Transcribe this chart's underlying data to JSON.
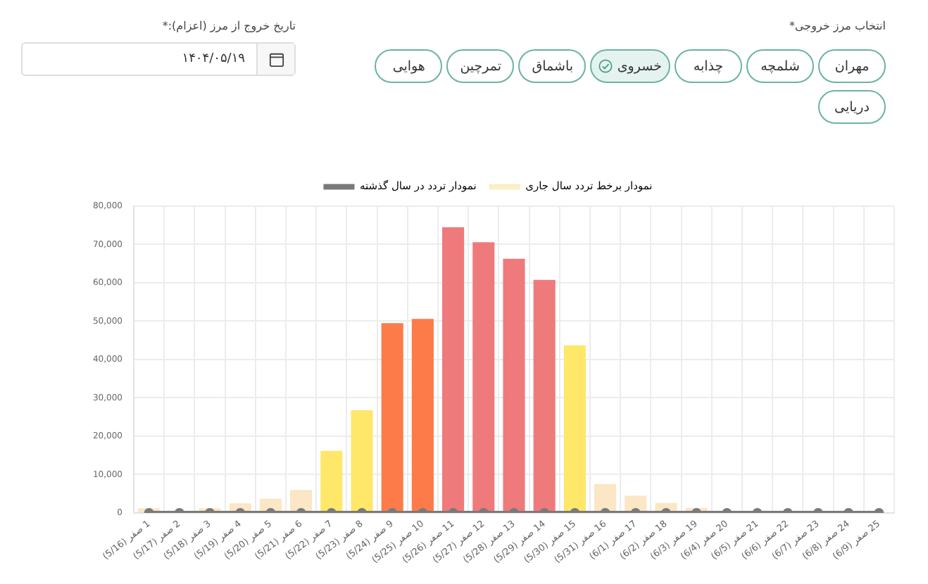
{
  "chart_data": {
    "type": "bar",
    "categories": [
      "1 صفر (5/16)",
      "2 صفر (5/17)",
      "3 صفر (5/18)",
      "4 صفر (5/19)",
      "5 صفر (5/20)",
      "6 صفر (5/21)",
      "7 صفر (5/22)",
      "8 صفر (5/23)",
      "9 صفر (5/24)",
      "10 صفر (5/25)",
      "11 صفر (5/26)",
      "12 صفر (5/27)",
      "13 صفر (5/28)",
      "14 صفر (5/29)",
      "15 صفر (5/30)",
      "16 صفر (5/31)",
      "17 صفر (6/1)",
      "18 صفر (6/2)",
      "19 صفر (6/3)",
      "20 صفر (6/4)",
      "21 صفر (6/5)",
      "22 صفر (6/6)",
      "23 صفر (6/7)",
      "24 صفر (6/8)",
      "25 صفر (6/9)"
    ],
    "series": [
      {
        "name": "نمودار تردد در سال گذشته",
        "type": "line",
        "color": "#7a7a7a",
        "values": [
          0,
          0,
          0,
          0,
          0,
          0,
          0,
          0,
          0,
          0,
          0,
          0,
          0,
          0,
          0,
          0,
          0,
          0,
          0,
          0,
          0,
          0,
          0,
          0,
          0
        ]
      },
      {
        "name": "نمودار برخط تردد سال جاری",
        "color": "#fbefc4",
        "colors": [
          "#fbe6c5",
          "#fbe6c5",
          "#fbe6c5",
          "#fbe6c5",
          "#fbe6c5",
          "#fbe6c5",
          "#ffe76a",
          "#ffe76a",
          "#fd7b49",
          "#fd7b49",
          "#ef7a7c",
          "#ef7a7c",
          "#ef7a7c",
          "#ef7a7c",
          "#ffe76a",
          "#fbe6c5",
          "#fbe6c5",
          "#fbe6c5",
          "#fbe6c5",
          "#fbe6c5",
          "#fbe6c5",
          "#fbe6c5",
          "#fbe6c5",
          "#fbe6c5",
          "#fbe6c5"
        ],
        "values": [
          1200,
          300,
          1200,
          2500,
          3700,
          6000,
          16200,
          26800,
          49500,
          50600,
          74500,
          70600,
          66300,
          60800,
          43700,
          7500,
          4500,
          2600,
          1300,
          0,
          0,
          0,
          0,
          0,
          0
        ]
      }
    ],
    "ylim": [
      0,
      80000
    ],
    "yticks": [
      0,
      {
        "value": 10000,
        "label": "10,000"
      },
      {
        "value": 20000,
        "label": "20,000"
      },
      {
        "value": 30000,
        "label": "30,000"
      },
      {
        "value": 40000,
        "label": "40,000"
      },
      {
        "value": 50000,
        "label": "50,000"
      },
      {
        "value": 60000,
        "label": "60,000"
      },
      {
        "value": 70000,
        "label": "70,000"
      },
      {
        "value": 80000,
        "label": "80,000"
      }
    ],
    "grid": true,
    "legend": "top",
    "marker": "circle",
    "annotations": [
      "انتخاب مرز خروجی*",
      "مهران",
      "شلمچه",
      "چذابه",
      "خسروی",
      "باشماق",
      "تمرچین",
      "هوایی",
      "دریایی",
      "تاریخ خروج از مرز (اعزام):*",
      "۱۴۰۴/۰۵/۱۹"
    ]
  }
}
